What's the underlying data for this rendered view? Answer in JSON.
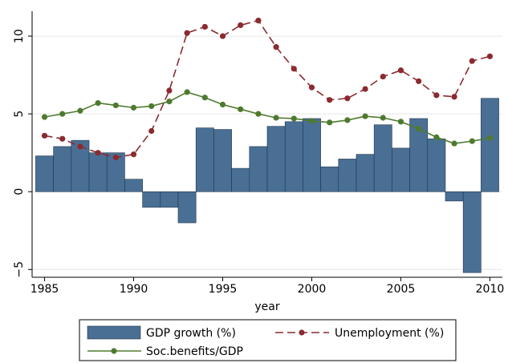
{
  "chart_data": {
    "type": "bar",
    "xlabel": "year",
    "ylabel": "",
    "xlim": [
      1984.3,
      2010.7
    ],
    "ylim": [
      -5.5,
      11.6
    ],
    "x_ticks": [
      1985,
      1990,
      1995,
      2000,
      2005,
      2010
    ],
    "y_ticks": [
      -5,
      0,
      5,
      10
    ],
    "grid": true,
    "legend_position": "bottom",
    "x": [
      1985,
      1986,
      1987,
      1988,
      1989,
      1990,
      1991,
      1992,
      1993,
      1994,
      1995,
      1996,
      1997,
      1998,
      1999,
      2000,
      2001,
      2002,
      2003,
      2004,
      2005,
      2006,
      2007,
      2008,
      2009,
      2010
    ],
    "series": [
      {
        "name": "GDP growth (%)",
        "kind": "bar",
        "color": "#4a6f94",
        "values": [
          2.3,
          2.9,
          3.3,
          2.5,
          2.5,
          0.8,
          -1.0,
          -1.0,
          -2.0,
          4.1,
          4.0,
          1.5,
          2.9,
          4.2,
          4.5,
          4.7,
          1.6,
          2.1,
          2.4,
          4.3,
          2.8,
          4.7,
          3.4,
          -0.6,
          -5.2,
          6.0
        ]
      },
      {
        "name": "Unemployment (%)",
        "kind": "line-dashed",
        "color": "#8b2a2f",
        "values": [
          3.6,
          3.4,
          2.9,
          2.5,
          2.2,
          2.4,
          3.9,
          6.5,
          10.2,
          10.6,
          10.0,
          10.7,
          11.0,
          9.3,
          7.9,
          6.7,
          5.9,
          6.0,
          6.6,
          7.4,
          7.8,
          7.1,
          6.2,
          6.1,
          8.4,
          8.7
        ]
      },
      {
        "name": "Soc.benefits/GDP",
        "kind": "line",
        "color": "#4e7a2e",
        "values": [
          4.8,
          5.0,
          5.2,
          5.7,
          5.55,
          5.4,
          5.5,
          5.8,
          6.4,
          6.05,
          5.6,
          5.3,
          5.0,
          4.75,
          4.7,
          4.55,
          4.45,
          4.6,
          4.85,
          4.75,
          4.5,
          4.05,
          3.5,
          3.1,
          3.25,
          3.45
        ]
      }
    ],
    "legend": [
      "GDP growth (%)",
      "Unemployment (%)",
      "Soc.benefits/GDP"
    ]
  }
}
